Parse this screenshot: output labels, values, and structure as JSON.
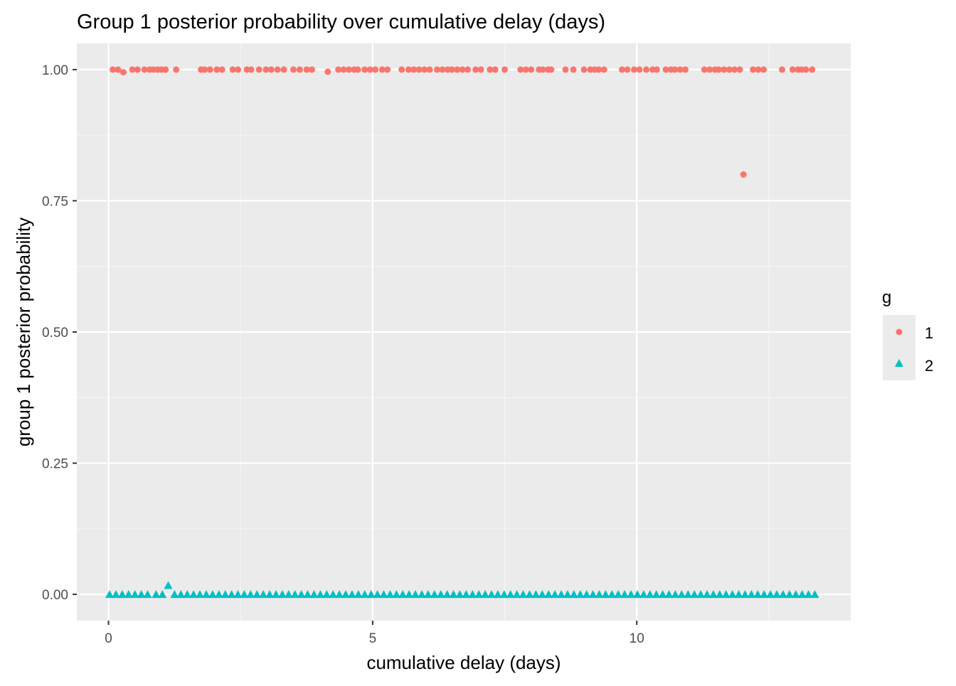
{
  "chart_data": {
    "type": "scatter",
    "title": "Group 1 posterior probability over cumulative delay (days)",
    "xlabel": "cumulative delay (days)",
    "ylabel": "group 1 posterior probability",
    "xlim": [
      -0.6,
      14.05
    ],
    "ylim": [
      -0.05,
      1.05
    ],
    "x_ticks": [
      0,
      5,
      10
    ],
    "x_tick_labels": [
      "0",
      "5",
      "10"
    ],
    "y_ticks": [
      0,
      0.25,
      0.5,
      0.75,
      1
    ],
    "y_tick_labels": [
      "0.00",
      "0.25",
      "0.50",
      "0.75",
      "1.00"
    ],
    "grid": true,
    "legend": {
      "title": "g",
      "position": "right",
      "entries": [
        {
          "label": "1",
          "shape": "circle",
          "color": "#F8766D"
        },
        {
          "label": "2",
          "shape": "triangle",
          "color": "#00BFC4"
        }
      ]
    },
    "colors": {
      "panel": "#EBEBEB",
      "grid_major": "#FFFFFF",
      "series_1": "#F8766D",
      "series_2": "#00BFC4",
      "tick_text": "#4D4D4D",
      "tick_mark": "#333333"
    },
    "series": [
      {
        "name": "1",
        "shape": "circle",
        "color": "#F8766D",
        "x": [
          0.08,
          0.18,
          0.28,
          0.45,
          0.55,
          0.68,
          0.78,
          0.85,
          0.93,
          1.0,
          1.08,
          1.28,
          1.75,
          1.82,
          1.92,
          2.05,
          2.15,
          2.35,
          2.45,
          2.62,
          2.7,
          2.85,
          2.98,
          3.08,
          3.2,
          3.32,
          3.5,
          3.62,
          3.75,
          3.85,
          4.15,
          4.35,
          4.45,
          4.55,
          4.65,
          4.72,
          4.85,
          4.95,
          5.05,
          5.18,
          5.28,
          5.55,
          5.68,
          5.78,
          5.88,
          5.98,
          6.08,
          6.22,
          6.32,
          6.42,
          6.5,
          6.6,
          6.7,
          6.8,
          6.95,
          7.05,
          7.22,
          7.32,
          7.5,
          7.8,
          7.9,
          8.0,
          8.15,
          8.22,
          8.32,
          8.38,
          8.65,
          8.8,
          9.0,
          9.12,
          9.2,
          9.28,
          9.38,
          9.72,
          9.82,
          9.95,
          10.05,
          10.18,
          10.3,
          10.38,
          10.55,
          10.65,
          10.72,
          10.82,
          10.92,
          11.28,
          11.38,
          11.48,
          11.55,
          11.65,
          11.75,
          11.85,
          11.95,
          12.02,
          12.2,
          12.3,
          12.4,
          12.75,
          12.95,
          13.05,
          13.12,
          13.2,
          13.32
        ],
        "y": [
          1,
          1,
          0.995,
          1,
          1,
          1,
          1,
          1,
          1,
          1,
          1,
          1,
          1,
          1,
          1,
          1,
          1,
          1,
          1,
          1,
          1,
          1,
          1,
          1,
          1,
          1,
          1,
          1,
          1,
          1,
          0.996,
          1,
          1,
          1,
          1,
          1,
          1,
          1,
          1,
          1,
          1,
          1,
          1,
          1,
          1,
          1,
          1,
          1,
          1,
          1,
          1,
          1,
          1,
          1,
          1,
          1,
          1,
          1,
          1,
          1,
          1,
          1,
          1,
          1,
          1,
          1,
          1,
          1,
          1,
          1,
          1,
          1,
          1,
          1,
          1,
          1,
          1,
          1,
          1,
          1,
          1,
          1,
          1,
          1,
          1,
          1,
          1,
          1,
          1,
          1,
          1,
          1,
          1,
          0.8,
          1,
          1,
          1,
          1,
          1,
          1,
          1,
          1,
          1
        ]
      },
      {
        "name": "2",
        "shape": "triangle",
        "color": "#00BFC4",
        "x": [
          0.02,
          0.14,
          0.26,
          0.38,
          0.5,
          0.62,
          0.74,
          0.9,
          1.02,
          1.13,
          1.25,
          1.37,
          1.49,
          1.61,
          1.73,
          1.85,
          1.97,
          2.09,
          2.21,
          2.33,
          2.45,
          2.57,
          2.69,
          2.81,
          2.93,
          3.05,
          3.17,
          3.29,
          3.41,
          3.53,
          3.65,
          3.77,
          3.89,
          4.01,
          4.13,
          4.25,
          4.37,
          4.49,
          4.61,
          4.73,
          4.85,
          4.97,
          5.09,
          5.21,
          5.33,
          5.45,
          5.57,
          5.69,
          5.81,
          5.93,
          6.05,
          6.17,
          6.29,
          6.41,
          6.53,
          6.65,
          6.77,
          6.89,
          7.01,
          7.13,
          7.25,
          7.37,
          7.49,
          7.61,
          7.73,
          7.85,
          7.97,
          8.09,
          8.21,
          8.33,
          8.45,
          8.57,
          8.69,
          8.81,
          8.93,
          9.05,
          9.17,
          9.29,
          9.41,
          9.53,
          9.65,
          9.77,
          9.89,
          10.01,
          10.13,
          10.25,
          10.37,
          10.49,
          10.61,
          10.73,
          10.85,
          10.97,
          11.09,
          11.21,
          11.33,
          11.45,
          11.57,
          11.69,
          11.81,
          11.93,
          12.05,
          12.17,
          12.29,
          12.41,
          12.53,
          12.65,
          12.77,
          12.89,
          13.01,
          13.13,
          13.25,
          13.37
        ],
        "y": [
          0,
          0,
          0,
          0,
          0,
          0,
          0,
          0,
          0,
          0.017,
          0,
          0,
          0,
          0,
          0,
          0,
          0,
          0,
          0,
          0,
          0,
          0,
          0,
          0,
          0,
          0,
          0,
          0,
          0,
          0,
          0,
          0,
          0,
          0,
          0,
          0,
          0,
          0,
          0,
          0,
          0,
          0,
          0,
          0,
          0,
          0,
          0,
          0,
          0,
          0,
          0,
          0,
          0,
          0,
          0,
          0,
          0,
          0,
          0,
          0,
          0,
          0,
          0,
          0,
          0,
          0,
          0,
          0,
          0,
          0,
          0,
          0,
          0,
          0,
          0,
          0,
          0,
          0,
          0,
          0,
          0,
          0,
          0,
          0,
          0,
          0,
          0,
          0,
          0,
          0,
          0,
          0,
          0,
          0,
          0,
          0,
          0,
          0,
          0,
          0,
          0,
          0,
          0,
          0,
          0,
          0,
          0,
          0,
          0,
          0,
          0,
          0
        ]
      }
    ]
  }
}
